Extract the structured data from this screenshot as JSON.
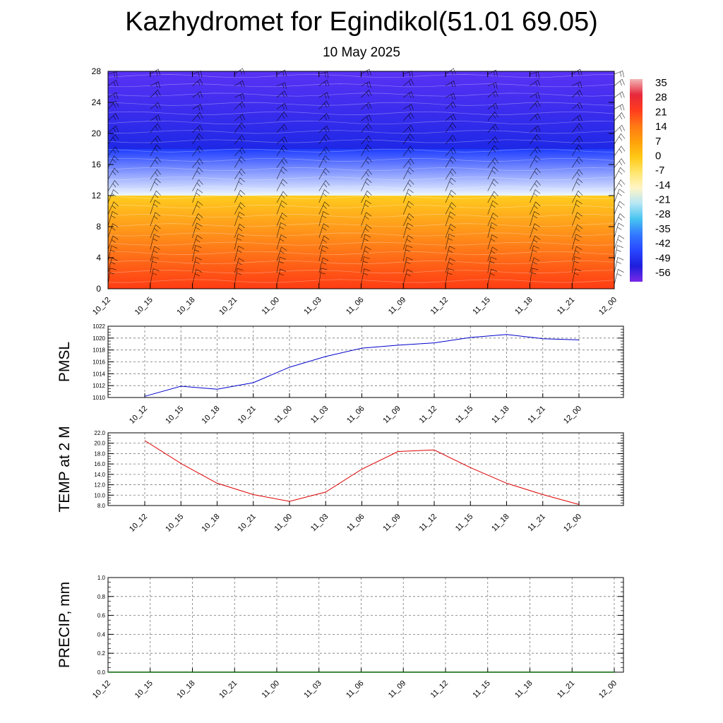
{
  "header": {
    "title": "Kazhydromet for Egindikol(51.01 69.05)",
    "date": "10 May 2025"
  },
  "chart_data": [
    {
      "type": "heatmap",
      "ylim": [
        0,
        28
      ],
      "yticks": [
        "0",
        "4",
        "8",
        "12",
        "16",
        "20",
        "24",
        "28"
      ],
      "categories": [
        "10_12",
        "10_15",
        "10_18",
        "10_21",
        "11_00",
        "11_03",
        "11_06",
        "11_09",
        "11_12",
        "11_15",
        "11_18",
        "11_21",
        "12_00"
      ],
      "colorbar": {
        "labels": [
          "35",
          "28",
          "21",
          "14",
          "7",
          "0",
          "-7",
          "-14",
          "-21",
          "-28",
          "-35",
          "-42",
          "-49",
          "-56"
        ],
        "colors": [
          "#f2b6b6",
          "#e6283c",
          "#ff3c1e",
          "#ff7814",
          "#ffa00a",
          "#ffc814",
          "#ffe66e",
          "#fff5c8",
          "#b4e6f5",
          "#46c3f0",
          "#3278ff",
          "#2846ff",
          "#1e1edc",
          "#7828e6"
        ]
      },
      "bands": [
        {
          "bottom": 0,
          "top": 12,
          "color_bottom": "#ff3c14",
          "color_top": "#ffcc1e"
        },
        {
          "bottom": 12,
          "top": 18,
          "color_bottom": "#f0f8ff",
          "color_top": "#1e3cff"
        },
        {
          "bottom": 18,
          "top": 28,
          "color_bottom": "#1e28e6",
          "color_top": "#5a32f5"
        }
      ]
    },
    {
      "type": "line",
      "ylabel": "PMSL",
      "ylim": [
        1010,
        1022
      ],
      "yticks": [
        "1010",
        "1012",
        "1014",
        "1016",
        "1018",
        "1020",
        "1022"
      ],
      "categories": [
        "10_12",
        "10_15",
        "10_18",
        "10_21",
        "11_00",
        "11_03",
        "11_06",
        "11_09",
        "11_12",
        "11_15",
        "11_18",
        "11_21",
        "12_00"
      ],
      "values": [
        1010.2,
        1011.9,
        1011.4,
        1012.5,
        1015.1,
        1016.9,
        1018.3,
        1018.8,
        1019.2,
        1020.1,
        1020.6,
        1019.9,
        1019.7
      ],
      "color": "#0000cc"
    },
    {
      "type": "line",
      "ylabel": "TEMP at 2 M",
      "ylim": [
        8,
        22
      ],
      "yticks": [
        "8.0",
        "10.0",
        "12.0",
        "14.0",
        "16.0",
        "18.0",
        "20.0",
        "22.0"
      ],
      "categories": [
        "10_12",
        "10_15",
        "10_18",
        "10_21",
        "11_00",
        "11_03",
        "11_06",
        "11_09",
        "11_12",
        "11_15",
        "11_18",
        "11_21",
        "12_00"
      ],
      "values": [
        20.5,
        16.1,
        12.3,
        10.1,
        8.8,
        10.6,
        15.0,
        18.4,
        18.7,
        15.3,
        12.3,
        10.1,
        8.2
      ],
      "color": "#dd0000"
    },
    {
      "type": "line",
      "ylabel": "PRECIP, mm",
      "ylim": [
        0,
        1
      ],
      "yticks": [
        "0.0",
        "0.2",
        "0.4",
        "0.6",
        "0.8",
        "1.0"
      ],
      "categories": [
        "10_12",
        "10_15",
        "10_18",
        "10_21",
        "11_00",
        "11_03",
        "11_06",
        "11_09",
        "11_12",
        "11_15",
        "11_18",
        "11_21",
        "12_00"
      ],
      "values": [
        0,
        0,
        0,
        0,
        0,
        0,
        0,
        0,
        0,
        0,
        0,
        0,
        0
      ],
      "color": "#006400"
    }
  ]
}
